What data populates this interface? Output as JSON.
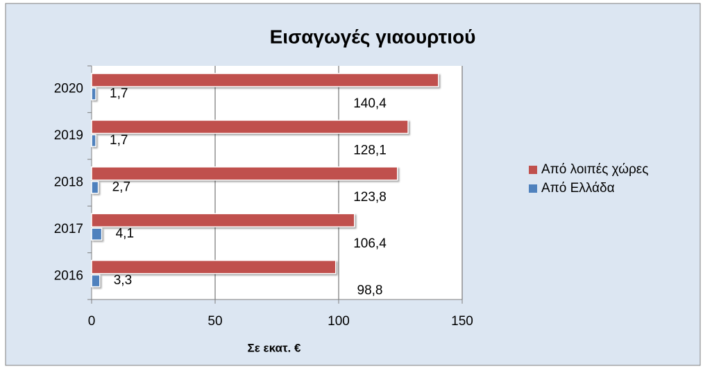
{
  "chart_data": {
    "type": "hbar",
    "title": "Εισαγωγές γιαουρτιού",
    "x_label": "Σε εκατ. €",
    "categories": [
      "2016",
      "2017",
      "2018",
      "2019",
      "2020"
    ],
    "series": [
      {
        "name": "Από λοιπές χώρες",
        "color": "#c0504d",
        "values": [
          98.8,
          106.4,
          123.8,
          128.1,
          140.4
        ],
        "value_labels": [
          "98,8",
          "106,4",
          "123,8",
          "128,1",
          "140,4"
        ]
      },
      {
        "name": "Από Ελλάδα",
        "color": "#4f81bd",
        "values": [
          3.3,
          4.1,
          2.7,
          1.7,
          1.7
        ],
        "value_labels": [
          "3,3",
          "4,1",
          "2,7",
          "1,7",
          "1,7"
        ]
      }
    ],
    "xlim": [
      0,
      150
    ],
    "xticks": [
      0,
      50,
      100,
      150
    ],
    "grid": true,
    "legend": "right"
  }
}
